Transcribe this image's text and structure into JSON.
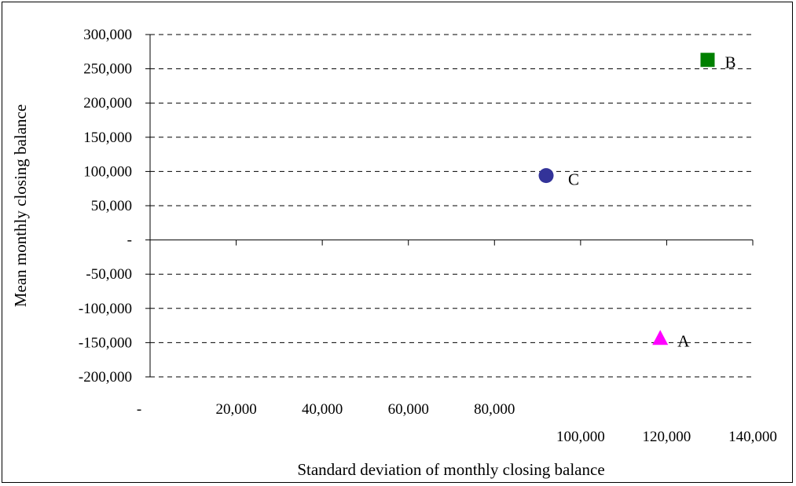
{
  "chart_data": {
    "type": "scatter",
    "title": "",
    "xlabel": "Standard deviation of monthly closing balance",
    "ylabel": "Mean monthly closing balance",
    "xlim": [
      0,
      140000
    ],
    "ylim": [
      -200000,
      300000
    ],
    "grid": "horizontal-dashed",
    "x_ticks": [
      {
        "value": 0,
        "label": "-"
      },
      {
        "value": 20000,
        "label": "20,000"
      },
      {
        "value": 40000,
        "label": "40,000"
      },
      {
        "value": 60000,
        "label": "60,000"
      },
      {
        "value": 80000,
        "label": "80,000"
      },
      {
        "value": 100000,
        "label": "100,000"
      },
      {
        "value": 120000,
        "label": "120,000"
      },
      {
        "value": 140000,
        "label": "140,000"
      }
    ],
    "y_ticks": [
      {
        "value": 300000,
        "label": "300,000"
      },
      {
        "value": 250000,
        "label": "250,000"
      },
      {
        "value": 200000,
        "label": "200,000"
      },
      {
        "value": 150000,
        "label": "150,000"
      },
      {
        "value": 100000,
        "label": "100,000"
      },
      {
        "value": 50000,
        "label": "50,000"
      },
      {
        "value": 0,
        "label": "-"
      },
      {
        "value": -50000,
        "label": "-50,000"
      },
      {
        "value": -100000,
        "label": "-100,000"
      },
      {
        "value": -150000,
        "label": "-150,000"
      },
      {
        "value": -200000,
        "label": "-200,000"
      }
    ],
    "points": [
      {
        "label": "A",
        "x": 118500,
        "y": -143000,
        "marker": "triangle",
        "color": "#ff00ff"
      },
      {
        "label": "B",
        "x": 129500,
        "y": 263000,
        "marker": "square",
        "color": "#008000"
      },
      {
        "label": "C",
        "x": 92000,
        "y": 94000,
        "marker": "circle",
        "color": "#333399"
      }
    ]
  }
}
